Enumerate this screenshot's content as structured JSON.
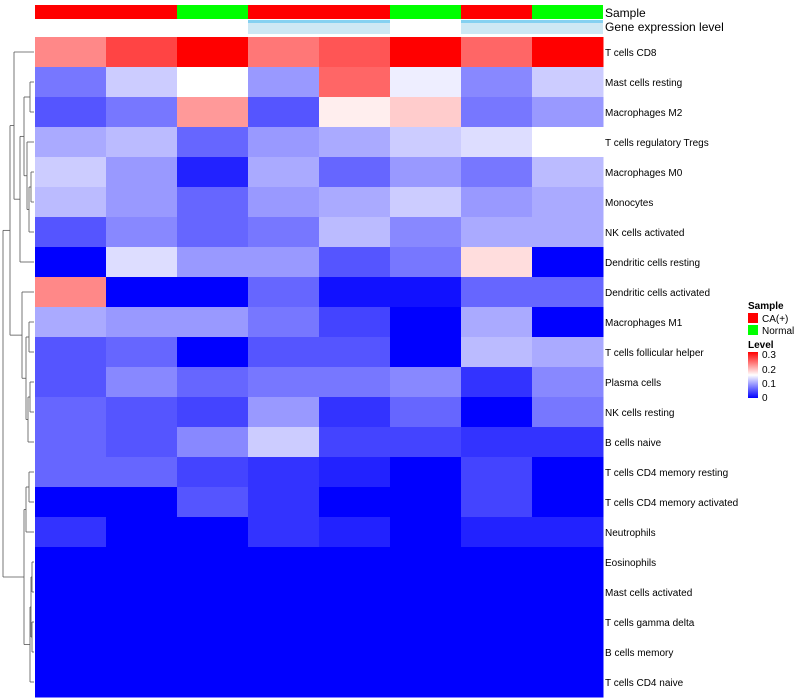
{
  "chart_data": {
    "type": "heatmap",
    "annotation_labels": [
      "Sample",
      "Gene expression level"
    ],
    "sample_group": [
      "CA(+)",
      "CA(+)",
      "Normal",
      "CA(+)",
      "CA(+)",
      "Normal",
      "CA(+)",
      "Normal"
    ],
    "expression_level": [
      "high",
      "high",
      "high",
      "low",
      "low",
      "high",
      "low",
      "low"
    ],
    "expression_colors": {
      "high": "#ffffff",
      "low": "#cde8f4"
    },
    "expression_top_colors": {
      "high": "#ffffff",
      "low": "#85d1f1"
    },
    "rows": [
      "T cells CD8",
      "Mast cells resting",
      "Macrophages M2",
      "T cells regulatory  Tregs",
      "Macrophages M0",
      "Monocytes",
      "NK cells activated",
      "Dendritic cells resting",
      "Dendritic cells activated",
      "Macrophages M1",
      "T cells follicular helper",
      "Plasma cells",
      "NK cells resting",
      "B cells naive",
      "T cells CD4 memory resting",
      "T cells CD4 memory activated",
      "Neutrophils",
      "Eosinophils",
      "Mast cells activated",
      "T cells gamma delta",
      "B cells memory",
      "T cells CD4 naive"
    ],
    "values": [
      [
        0.22,
        0.26,
        0.3,
        0.23,
        0.25,
        0.3,
        0.24,
        0.3
      ],
      [
        0.07,
        0.12,
        0.15,
        0.09,
        0.24,
        0.14,
        0.08,
        0.12
      ],
      [
        0.05,
        0.07,
        0.21,
        0.05,
        0.16,
        0.18,
        0.07,
        0.09
      ],
      [
        0.1,
        0.11,
        0.06,
        0.09,
        0.1,
        0.12,
        0.13,
        0.15
      ],
      [
        0.12,
        0.09,
        0.02,
        0.1,
        0.06,
        0.09,
        0.07,
        0.11
      ],
      [
        0.11,
        0.09,
        0.06,
        0.09,
        0.1,
        0.12,
        0.09,
        0.1
      ],
      [
        0.05,
        0.08,
        0.06,
        0.07,
        0.11,
        0.08,
        0.1,
        0.1
      ],
      [
        0.0,
        0.13,
        0.09,
        0.09,
        0.05,
        0.07,
        0.17,
        0.0
      ],
      [
        0.22,
        0.0,
        0.0,
        0.06,
        0.01,
        0.01,
        0.06,
        0.06
      ],
      [
        0.1,
        0.09,
        0.09,
        0.07,
        0.04,
        0.0,
        0.1,
        0.0
      ],
      [
        0.05,
        0.06,
        0.0,
        0.05,
        0.05,
        0.0,
        0.11,
        0.1
      ],
      [
        0.05,
        0.08,
        0.06,
        0.07,
        0.07,
        0.08,
        0.03,
        0.08
      ],
      [
        0.06,
        0.05,
        0.04,
        0.09,
        0.03,
        0.06,
        0.0,
        0.07
      ],
      [
        0.06,
        0.05,
        0.08,
        0.12,
        0.04,
        0.04,
        0.03,
        0.03
      ],
      [
        0.06,
        0.06,
        0.04,
        0.03,
        0.02,
        0.0,
        0.04,
        0.0
      ],
      [
        0.0,
        0.0,
        0.05,
        0.03,
        0.0,
        0.0,
        0.04,
        0.0
      ],
      [
        0.03,
        0.0,
        0.0,
        0.03,
        0.02,
        0.0,
        0.02,
        0.02
      ],
      [
        0.0,
        0.0,
        0.0,
        0.0,
        0.0,
        0.0,
        0.0,
        0.0
      ],
      [
        0.0,
        0.0,
        0.0,
        0.0,
        0.0,
        0.0,
        0.0,
        0.0
      ],
      [
        0.0,
        0.0,
        0.0,
        0.0,
        0.0,
        0.0,
        0.0,
        0.0
      ],
      [
        0.0,
        0.0,
        0.0,
        0.0,
        0.0,
        0.0,
        0.0,
        0.0
      ],
      [
        0.0,
        0.0,
        0.0,
        0.0,
        0.0,
        0.0,
        0.0,
        0.0
      ]
    ],
    "color_scale": {
      "min": 0,
      "max": 0.3,
      "low": "#0000ff",
      "mid": "#ffffff",
      "high": "#ff0000",
      "mid_value": 0.15
    },
    "legend": {
      "sample_title": "Sample",
      "sample_entries": [
        {
          "label": "CA(+)",
          "color": "#ff0000"
        },
        {
          "label": "Normal",
          "color": "#00ff00"
        }
      ],
      "level_title": "Level",
      "level_ticks": [
        "0.3",
        "0.2",
        "0.1",
        "0"
      ],
      "placement": "right"
    },
    "dendrogram": "left"
  }
}
